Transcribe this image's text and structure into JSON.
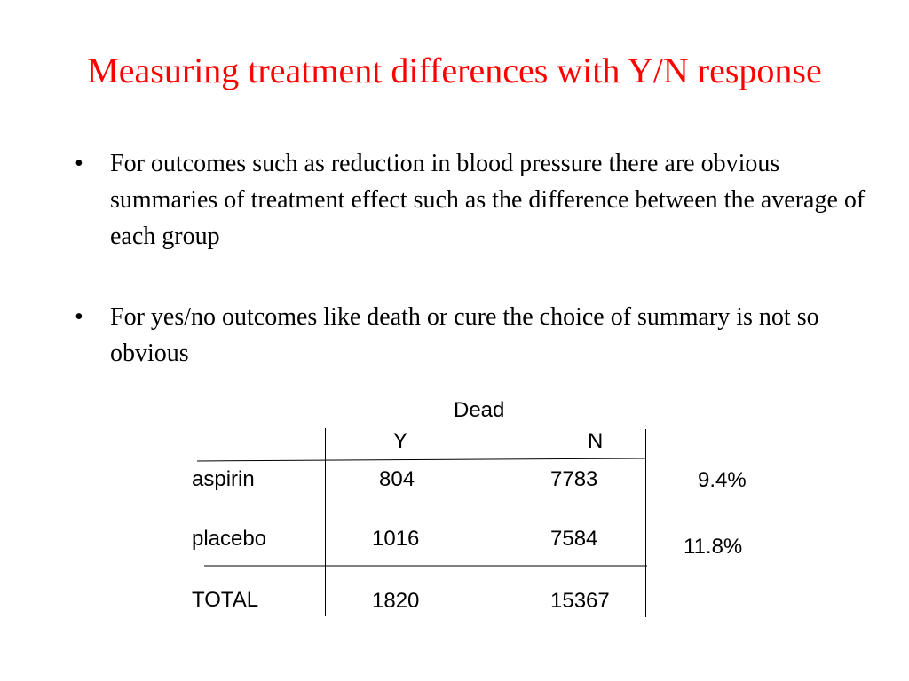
{
  "slide": {
    "title": "Measuring treatment differences with Y/N response",
    "bullets": [
      {
        "mark": "•",
        "text": "For outcomes such as reduction in blood pressure there are obvious summaries of treatment effect such as the difference between the average of each group"
      },
      {
        "mark": "•",
        "text": "For yes/no outcomes like death or cure the choice of summary is not so obvious"
      }
    ]
  },
  "table": {
    "group_header": "Dead",
    "columns": [
      "Y",
      "N"
    ],
    "rows": [
      {
        "label": "aspirin",
        "y": "804",
        "n": "7783",
        "pct": "9.4%"
      },
      {
        "label": "placebo",
        "y": "1016",
        "n": "7584",
        "pct": "11.8%"
      },
      {
        "label": "TOTAL",
        "y": "1820",
        "n": "15367",
        "pct": ""
      }
    ]
  },
  "colors": {
    "title": "#ff0000",
    "text": "#000000",
    "background": "#ffffff"
  }
}
